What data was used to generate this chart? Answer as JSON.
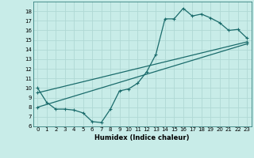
{
  "xlabel": "Humidex (Indice chaleur)",
  "ylabel": "",
  "bg_color": "#c8ece8",
  "grid_color": "#b0d8d4",
  "line_color": "#1a6b6b",
  "xlim": [
    -0.5,
    23.5
  ],
  "ylim": [
    6,
    19
  ],
  "xticks": [
    0,
    1,
    2,
    3,
    4,
    5,
    6,
    7,
    8,
    9,
    10,
    11,
    12,
    13,
    14,
    15,
    16,
    17,
    18,
    19,
    20,
    21,
    22,
    23
  ],
  "yticks": [
    6,
    7,
    8,
    9,
    10,
    11,
    12,
    13,
    14,
    15,
    16,
    17,
    18
  ],
  "curve1_x": [
    0,
    1,
    2,
    3,
    4,
    5,
    6,
    7,
    8,
    9,
    10,
    11,
    12,
    13,
    14,
    15,
    16,
    17,
    18,
    19,
    20,
    21,
    22,
    23
  ],
  "curve1_y": [
    10.0,
    8.5,
    7.8,
    7.8,
    7.7,
    7.4,
    6.5,
    6.4,
    7.8,
    9.7,
    9.9,
    10.5,
    11.7,
    13.5,
    17.2,
    17.2,
    18.3,
    17.5,
    17.7,
    17.3,
    16.8,
    16.0,
    16.1,
    15.2
  ],
  "curve2_x": [
    0,
    23
  ],
  "curve2_y": [
    8.0,
    14.6
  ],
  "curve3_x": [
    0,
    23
  ],
  "curve3_y": [
    9.5,
    14.8
  ],
  "marker": "+",
  "markersize": 3,
  "markeredgewidth": 0.8,
  "linewidth": 0.9,
  "tick_fontsize": 5.0,
  "xlabel_fontsize": 6.0
}
